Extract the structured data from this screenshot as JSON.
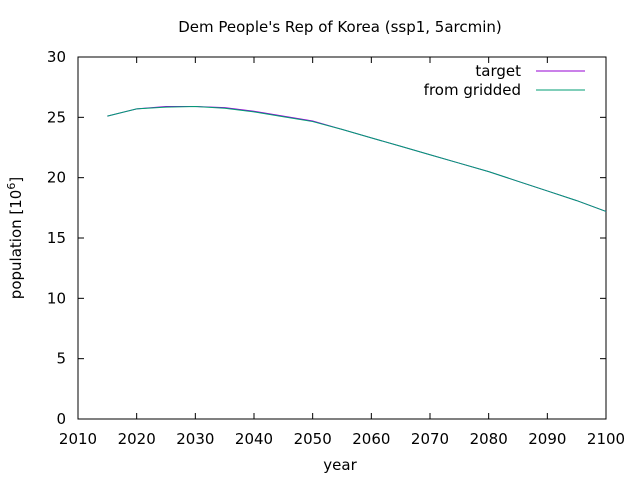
{
  "chart_data": {
    "type": "line",
    "title": "Dem People's Rep of Korea (ssp1, 5arcmin)",
    "xlabel": "year",
    "ylabel_prefix": "population [10",
    "ylabel_exponent": "6",
    "ylabel_suffix": "]",
    "xlim": [
      2010,
      2100
    ],
    "ylim": [
      0,
      30
    ],
    "xticks": [
      2010,
      2020,
      2030,
      2040,
      2050,
      2060,
      2070,
      2080,
      2090,
      2100
    ],
    "yticks": [
      0,
      5,
      10,
      15,
      20,
      25,
      30
    ],
    "grid": false,
    "legend_position": "top-right",
    "series": [
      {
        "name": "target",
        "color": "#9400d3",
        "x": [
          2015,
          2020,
          2025,
          2030,
          2035,
          2040,
          2045,
          2050,
          2055,
          2060,
          2065,
          2070,
          2075,
          2080,
          2085,
          2090,
          2095,
          2100
        ],
        "y": [
          25.1,
          25.7,
          25.9,
          25.9,
          25.8,
          25.5,
          25.1,
          24.7,
          24.0,
          23.3,
          22.6,
          21.9,
          21.2,
          20.5,
          19.7,
          18.9,
          18.1,
          17.2
        ]
      },
      {
        "name": "from gridded",
        "color": "#009e73",
        "x": [
          2015,
          2020,
          2025,
          2030,
          2035,
          2040,
          2045,
          2050,
          2055,
          2060,
          2065,
          2070,
          2075,
          2080,
          2085,
          2090,
          2095,
          2100
        ],
        "y": [
          25.1,
          25.7,
          25.85,
          25.9,
          25.75,
          25.45,
          25.05,
          24.65,
          24.0,
          23.3,
          22.6,
          21.9,
          21.2,
          20.5,
          19.7,
          18.9,
          18.1,
          17.2
        ]
      }
    ]
  }
}
